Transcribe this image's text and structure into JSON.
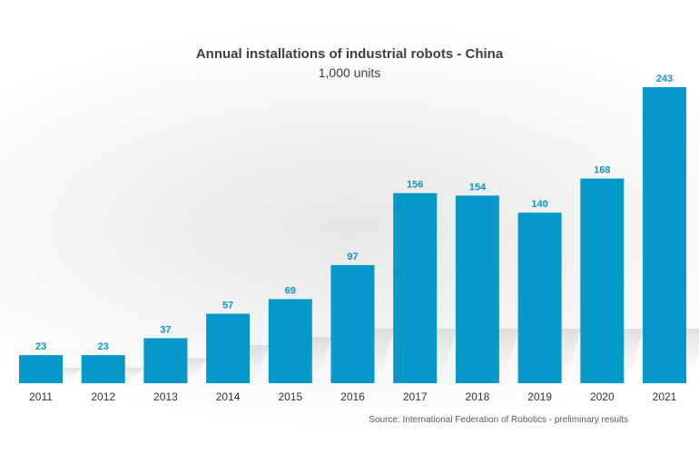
{
  "colors": {
    "bar": "#0599c9",
    "value_label": "#0599c9",
    "category_label": "#333333",
    "shadow": "#b8b8b8"
  },
  "chart_data": {
    "type": "bar",
    "title": "Annual installations of industrial robots - China",
    "subtitle": "1,000 units",
    "categories": [
      "2011",
      "2012",
      "2013",
      "2014",
      "2015",
      "2016",
      "2017",
      "2018",
      "2019",
      "2020",
      "2021"
    ],
    "values": [
      23,
      23,
      37,
      57,
      69,
      97,
      156,
      154,
      140,
      168,
      243
    ],
    "xlabel": "",
    "ylabel": "",
    "ylim": [
      0,
      243
    ],
    "grid": false,
    "legend": "none",
    "source": "Source: International Federation of Robotics - preliminary results"
  }
}
